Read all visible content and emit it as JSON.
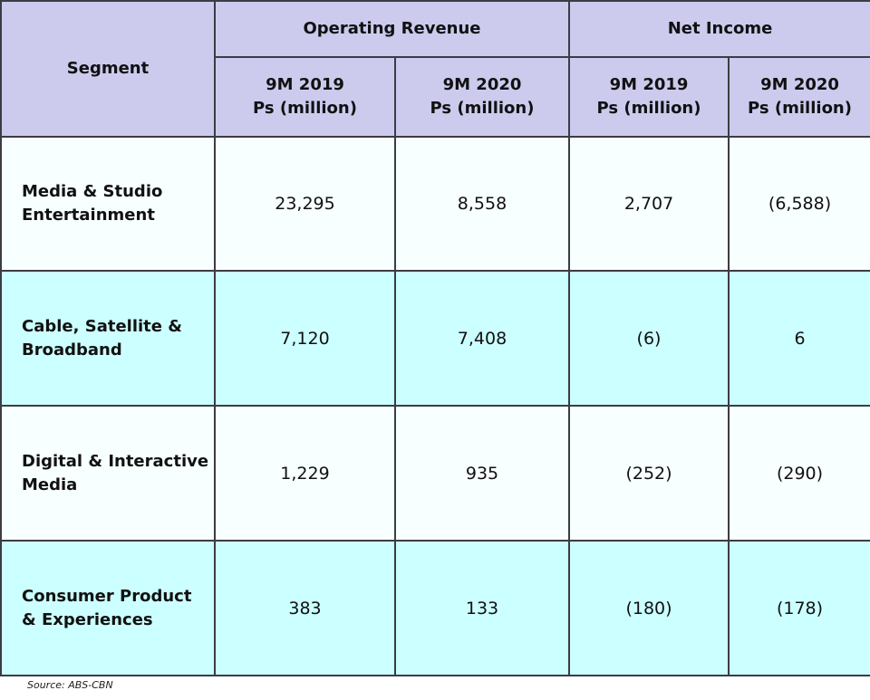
{
  "header": {
    "segment": "Segment",
    "groups": [
      "Operating Revenue",
      "Net Income"
    ],
    "subcolumns": [
      {
        "period": "9M 2019",
        "unit": "Ps (million)"
      },
      {
        "period": "9M 2020",
        "unit": "Ps (million)"
      },
      {
        "period": "9M 2019",
        "unit": "Ps (million)"
      },
      {
        "period": "9M 2020",
        "unit": "Ps (million)"
      }
    ]
  },
  "rows": [
    {
      "segment_line1": "Media & Studio",
      "segment_line2": "Entertainment",
      "values": [
        "23,295",
        "8,558",
        "2,707",
        "(6,588)"
      ]
    },
    {
      "segment_line1": "Cable, Satellite &",
      "segment_line2": "Broadband",
      "values": [
        "7,120",
        "7,408",
        "(6)",
        "6"
      ]
    },
    {
      "segment_line1": "Digital & Interactive",
      "segment_line2": "Media",
      "values": [
        "1,229",
        "935",
        "(252)",
        "(290)"
      ]
    },
    {
      "segment_line1": "Consumer Product",
      "segment_line2": "& Experiences",
      "values": [
        "383",
        "133",
        "(180)",
        "(178)"
      ]
    }
  ],
  "source": "Source: ABS-CBN",
  "colors": {
    "header": "#cccbee",
    "row_white": "#f8ffff",
    "row_cyan": "#ccffff"
  }
}
